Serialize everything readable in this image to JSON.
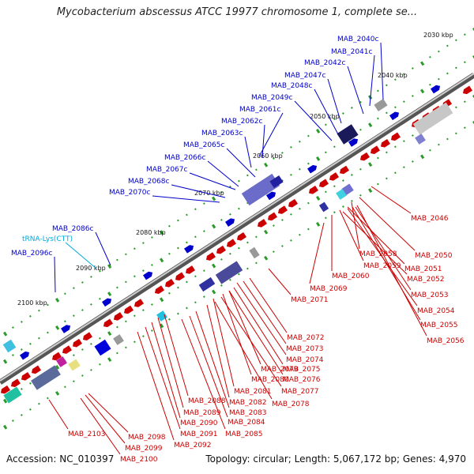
{
  "title": "Mycobacterium abscessus ATCC 19977 chromosome 1, complete se...",
  "footer": {
    "accession": "Accession: NC_010397",
    "summary": "Topology: circular; Length: 5,067,172 bp; Genes: 4,970"
  },
  "colors": {
    "forward_gene": "#0000cc",
    "reverse_gene": "#cc0000",
    "trna": "#00aadd",
    "backbone": "#888888",
    "tick": "#2a9a2a"
  },
  "kbp_labels": [
    "2030 kbp",
    "2040 kbp",
    "2050 kbp",
    "2060 kbp",
    "2070 kbp",
    "2080 kbp",
    "2090 kbp",
    "2100 kbp"
  ],
  "top_labels": [
    {
      "text": "MAB_2040c",
      "kind": "forward"
    },
    {
      "text": "MAB_2041c",
      "kind": "forward"
    },
    {
      "text": "MAB_2042c",
      "kind": "forward"
    },
    {
      "text": "MAB_2047c",
      "kind": "forward"
    },
    {
      "text": "MAB_2048c",
      "kind": "forward"
    },
    {
      "text": "MAB_2049c",
      "kind": "forward"
    },
    {
      "text": "MAB_2061c",
      "kind": "forward"
    },
    {
      "text": "MAB_2062c",
      "kind": "forward"
    },
    {
      "text": "MAB_2063c",
      "kind": "forward"
    },
    {
      "text": "MAB_2065c",
      "kind": "forward"
    },
    {
      "text": "MAB_2066c",
      "kind": "forward"
    },
    {
      "text": "MAB_2067c",
      "kind": "forward"
    },
    {
      "text": "MAB_2068c",
      "kind": "forward"
    },
    {
      "text": "MAB_2070c",
      "kind": "forward"
    },
    {
      "text": "MAB_2086c",
      "kind": "forward"
    },
    {
      "text": "tRNA-Lys(CTT)",
      "kind": "trna"
    },
    {
      "text": "MAB_2096c",
      "kind": "forward"
    }
  ],
  "bottom_labels": [
    {
      "text": "MAB_2046"
    },
    {
      "text": "MAB_2050"
    },
    {
      "text": "MAB_2058"
    },
    {
      "text": "MAB_2051"
    },
    {
      "text": "MAB_2059"
    },
    {
      "text": "MAB_2052"
    },
    {
      "text": "MAB_2060"
    },
    {
      "text": "MAB_2053"
    },
    {
      "text": "MAB_2069"
    },
    {
      "text": "MAB_2054"
    },
    {
      "text": "MAB_2071"
    },
    {
      "text": "MAB_2055"
    },
    {
      "text": "MAB_2056"
    },
    {
      "text": "MAB_2072"
    },
    {
      "text": "MAB_2073"
    },
    {
      "text": "MAB_2074"
    },
    {
      "text": "MAB_2079"
    },
    {
      "text": "MAB_2075"
    },
    {
      "text": "MAB_2080"
    },
    {
      "text": "MAB_2076"
    },
    {
      "text": "MAB_2081"
    },
    {
      "text": "MAB_2077"
    },
    {
      "text": "MAB_2088"
    },
    {
      "text": "MAB_2082"
    },
    {
      "text": "MAB_2078"
    },
    {
      "text": "MAB_2089"
    },
    {
      "text": "MAB_2083"
    },
    {
      "text": "MAB_2090"
    },
    {
      "text": "MAB_2084"
    },
    {
      "text": "MAB_2091"
    },
    {
      "text": "MAB_2085"
    },
    {
      "text": "MAB_2103"
    },
    {
      "text": "MAB_2098"
    },
    {
      "text": "MAB_2092"
    },
    {
      "text": "MAB_2099"
    },
    {
      "text": "MAB_2100"
    }
  ]
}
